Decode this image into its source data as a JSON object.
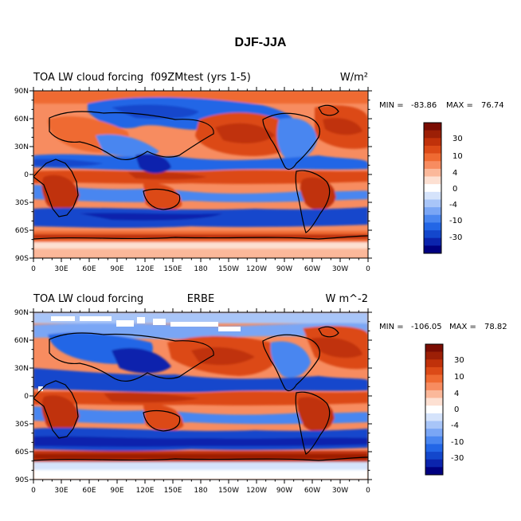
{
  "figure": {
    "title": "DJF-JJA"
  },
  "colors": {
    "contour_levels": [
      "#000080",
      "#0b24ad",
      "#1347cc",
      "#2366e6",
      "#4a86f0",
      "#7aa6f5",
      "#a8c5f8",
      "#d5e3fb",
      "#ffffff",
      "#fde0d2",
      "#fbb89a",
      "#f78c60",
      "#ef6a32",
      "#dc4a17",
      "#c0310a",
      "#9c1f06",
      "#7a0c02"
    ],
    "coast": "#000000"
  },
  "panels": [
    {
      "id": "model",
      "left_label": "TOA LW cloud forcing",
      "center_label": "f09ZMtest (yrs 1-5)",
      "units": "W/m²",
      "min_label": "MIN =",
      "min_value": "-83.86",
      "max_label": "MAX =",
      "max_value": "76.74",
      "colorbar_labels": [
        "30",
        "10",
        "4",
        "0",
        "-4",
        "-10",
        "-30"
      ],
      "lat_labels": [
        "90N",
        "60N",
        "30N",
        "0",
        "30S",
        "60S",
        "90S"
      ],
      "lon_labels": [
        "0",
        "30E",
        "60E",
        "90E",
        "120E",
        "150E",
        "180",
        "150W",
        "120W",
        "90W",
        "60W",
        "30W",
        "0"
      ]
    },
    {
      "id": "obs",
      "left_label": "TOA LW cloud forcing",
      "center_label": "ERBE",
      "units": "W m^-2",
      "min_label": "MIN =",
      "min_value": "-106.05",
      "max_label": "MAX =",
      "max_value": "78.82",
      "colorbar_labels": [
        "30",
        "10",
        "4",
        "0",
        "-4",
        "-10",
        "-30"
      ],
      "lat_labels": [
        "90N",
        "60N",
        "30N",
        "0",
        "30S",
        "60S",
        "90S"
      ],
      "lon_labels": [
        "0",
        "30E",
        "60E",
        "90E",
        "120E",
        "150E",
        "180",
        "150W",
        "120W",
        "90W",
        "60W",
        "30W",
        "0"
      ]
    }
  ]
}
